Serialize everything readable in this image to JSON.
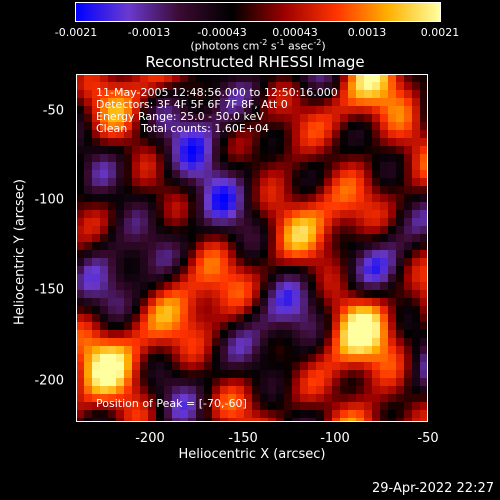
{
  "colorbar": {
    "ticks": [
      "-0.0021",
      "-0.0013",
      "-0.00043",
      "0.00043",
      "0.0013",
      "0.0021"
    ],
    "units_prefix": "(photons cm",
    "units_exp1": "-2",
    "units_mid1": " s",
    "units_exp2": "-1",
    "units_mid2": " asec",
    "units_exp3": "-2",
    "units_suffix": ")",
    "colors": [
      "#0000ff",
      "#6a3ad0",
      "#3a0a30",
      "#000000",
      "#9b0000",
      "#ff3300",
      "#ffb000",
      "#ffffa0"
    ]
  },
  "chart_data": {
    "type": "heatmap",
    "title": "Reconstructed RHESSI Image",
    "xlabel": "Heliocentric X (arcsec)",
    "ylabel": "Heliocentric Y (arcsec)",
    "xlim": [
      -245,
      -50
    ],
    "ylim": [
      -225,
      -33
    ],
    "xticks": [
      -200,
      -150,
      -100,
      -50
    ],
    "yticks": [
      -50,
      -100,
      -150,
      -200
    ],
    "value_range": [
      -0.0021,
      0.0021
    ],
    "peak": [
      -70,
      -60
    ],
    "info_lines": [
      "11-May-2005 12:48:56.000 to 12:50:16.000",
      "Detectors: 3F 4F 5F 6F 7F 8F, Att 0",
      "Energy Range: 25.0 - 50.0 keV",
      "Clean    Total counts: 1.60E+04"
    ],
    "peak_label": "Position of Peak = [-70,-60]"
  },
  "timestamp": "29-Apr-2022 22:27"
}
